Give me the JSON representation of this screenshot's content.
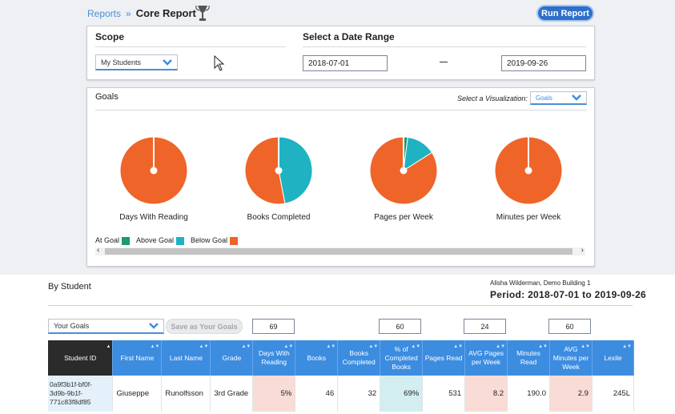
{
  "breadcrumb": {
    "reports_link": "Reports",
    "separator": "»",
    "title": "Core Report"
  },
  "run_button": "Run Report",
  "scope": {
    "label": "Scope",
    "selected": "My Students"
  },
  "date_range": {
    "label": "Select a Date Range",
    "start": "2018-07-01",
    "end": "2019-09-26"
  },
  "goals_panel": {
    "title": "Goals",
    "viz_label": "Select a Visualization:",
    "viz_selected": "Goals",
    "charts": [
      {
        "label": "Days With Reading",
        "at_goal": 0,
        "above_goal": 0,
        "below_goal": 100
      },
      {
        "label": "Books Completed",
        "at_goal": 0,
        "above_goal": 47,
        "below_goal": 53
      },
      {
        "label": "Pages per Week",
        "at_goal": 2,
        "above_goal": 14,
        "below_goal": 84
      },
      {
        "label": "Minutes per Week",
        "at_goal": 0,
        "above_goal": 0,
        "below_goal": 100
      }
    ],
    "legend": {
      "at_goal": "At Goal",
      "above_goal": "Above Goal",
      "below_goal": "Below Goal"
    },
    "colors": {
      "at_goal": "#1f9a6a",
      "above_goal": "#1fb2c2",
      "below_goal": "#ef6428"
    }
  },
  "by_student": {
    "title": "By Student",
    "user_line": "Alisha Wilderman, Demo Building 1",
    "period": "Period: 2018-07-01 to 2019-09-26",
    "goals_select": "Your Goals",
    "save_button": "Save as Your Goals",
    "goal_values": {
      "days_with_reading": "69",
      "pct_completed": "60",
      "avg_pages": "24",
      "avg_minutes": "60"
    },
    "columns": [
      "Student ID",
      "First Name",
      "Last Name",
      "Grade",
      "Days With Reading",
      "Books",
      "Books Completed",
      "% of Completed Books",
      "Pages Read",
      "AVG Pages per Week",
      "Minutes Read",
      "AVG Minutes per Week",
      "Lexile"
    ],
    "rows": [
      {
        "id": "0a9f3b1f-bf0f-3d9b-9b1f-771c83f8df85",
        "first": "Giuseppe",
        "last": "Runolfsson",
        "grade": "3rd Grade",
        "days": "5%",
        "books": "46",
        "completed": "32",
        "pct": "69%",
        "pages": "531",
        "avg_pages": "8.2",
        "minutes": "190.0",
        "avg_minutes": "2.9",
        "lexile": "245L"
      }
    ]
  }
}
